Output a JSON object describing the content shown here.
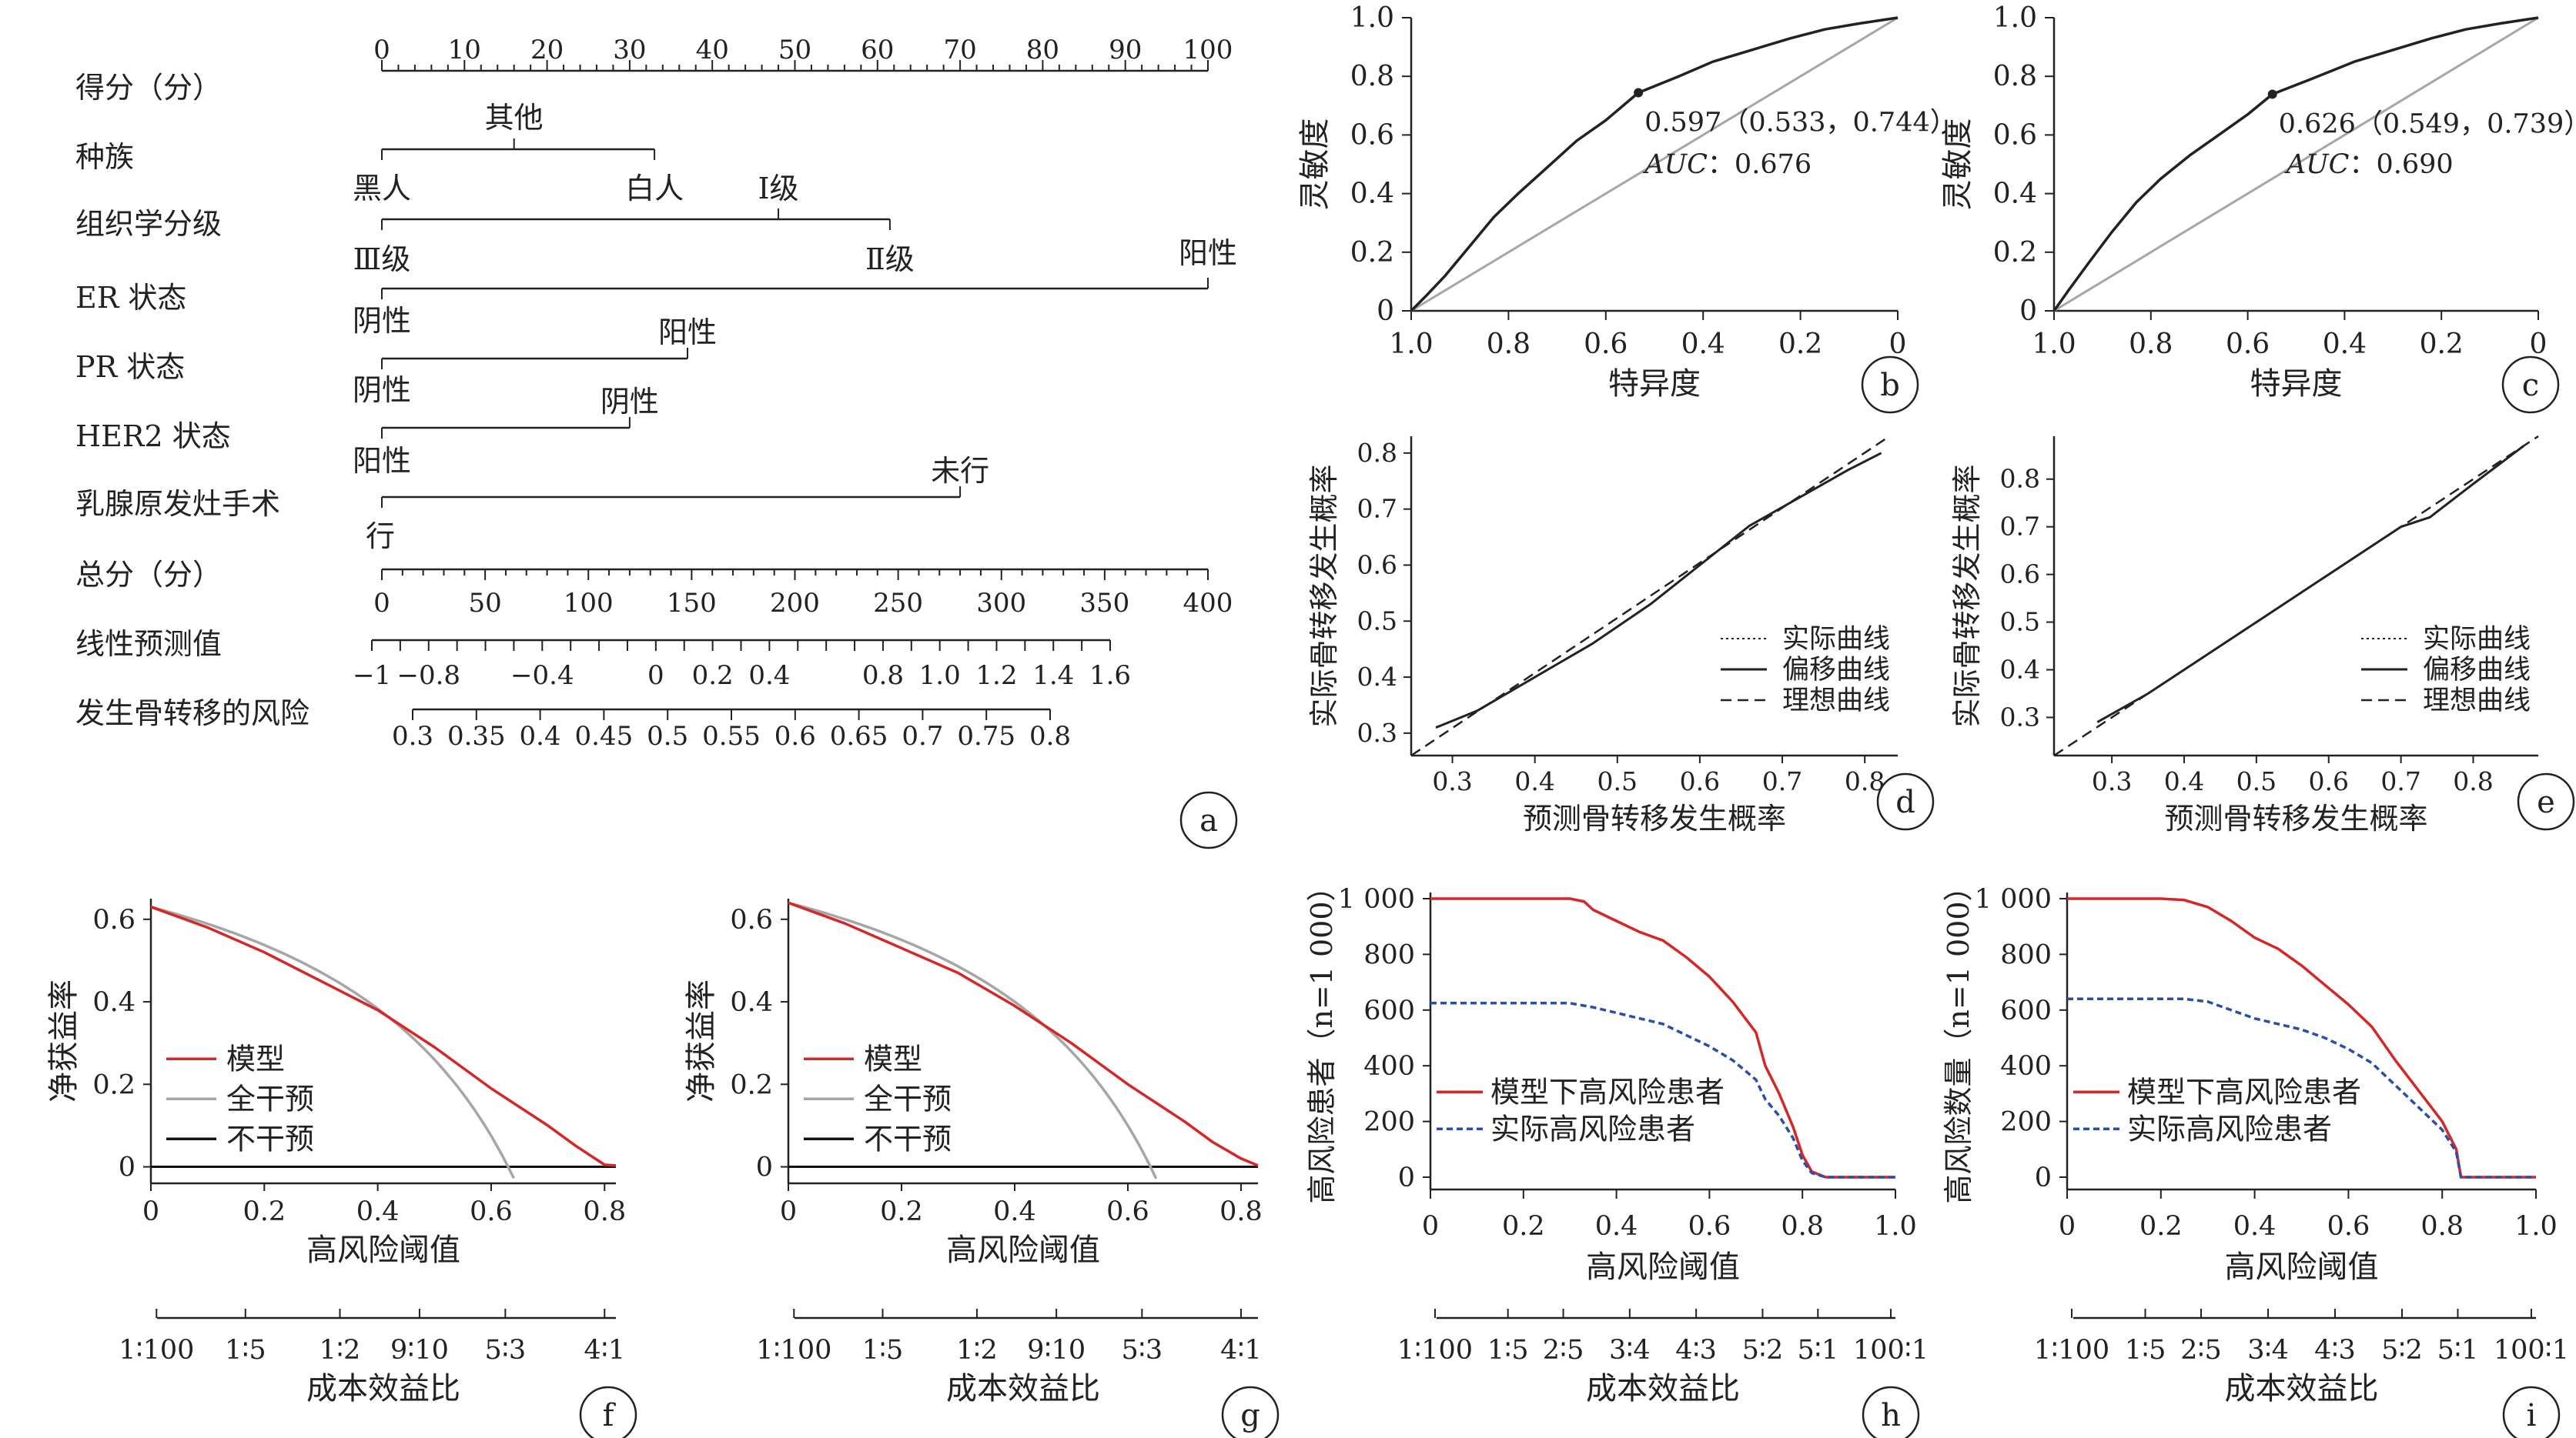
{
  "colors": {
    "model": "#d62728",
    "treat_all": "#a6a6a6",
    "treat_none": "#111111",
    "actual": "#2a4fa8",
    "ink": "#222222",
    "diag": "#a6a6a6"
  },
  "chart_data": [
    {
      "panel": "a",
      "type": "nomogram",
      "rows": [
        {
          "label": "得分（分）",
          "ticks": [
            "0",
            "10",
            "20",
            "30",
            "40",
            "50",
            "60",
            "70",
            "80",
            "90",
            "100"
          ]
        },
        {
          "label": "种族",
          "levels": [
            "其他",
            "黑人",
            "白人"
          ]
        },
        {
          "label": "组织学分级",
          "levels": [
            "Ⅰ级",
            "Ⅲ级",
            "Ⅱ级"
          ]
        },
        {
          "label": "ER 状态",
          "levels": [
            "阳性",
            "阴性"
          ]
        },
        {
          "label": "PR 状态",
          "levels": [
            "阳性",
            "阴性"
          ]
        },
        {
          "label": "HER2 状态",
          "levels": [
            "阴性",
            "阳性"
          ]
        },
        {
          "label": "乳腺原发灶手术",
          "levels": [
            "未行",
            "行"
          ]
        },
        {
          "label": "总分（分）",
          "ticks": [
            "0",
            "50",
            "100",
            "150",
            "200",
            "250",
            "300",
            "350",
            "400"
          ]
        },
        {
          "label": "线性预测值",
          "ticks": [
            "−1",
            "−0.8",
            "−0.4",
            "0",
            "0.2",
            "0.4",
            "0.8",
            "1.0",
            "1.2",
            "1.4",
            "1.6"
          ]
        },
        {
          "label": "发生骨转移的风险",
          "ticks": [
            "0.3",
            "0.35",
            "0.4",
            "0.45",
            "0.5",
            "0.55",
            "0.6",
            "0.65",
            "0.7",
            "0.75",
            "0.8"
          ]
        }
      ]
    },
    {
      "panel": "b",
      "type": "line",
      "xlabel": "特异度",
      "ylabel": "灵敏度",
      "xlim": [
        1,
        0
      ],
      "ylim": [
        0,
        1
      ],
      "xticks": [
        "1.0",
        "0.8",
        "0.6",
        "0.4",
        "0.2",
        "0"
      ],
      "yticks": [
        "0",
        "0.2",
        "0.4",
        "0.6",
        "0.8",
        "1.0"
      ],
      "cutoff_label": "0.597（0.533，0.744）",
      "cutoff": [
        0.533,
        0.744
      ],
      "auc_label": "AUC",
      "auc_value": "：0.676",
      "roc": [
        [
          1,
          0
        ],
        [
          0.97,
          0.05
        ],
        [
          0.93,
          0.12
        ],
        [
          0.88,
          0.22
        ],
        [
          0.83,
          0.32
        ],
        [
          0.78,
          0.4
        ],
        [
          0.72,
          0.49
        ],
        [
          0.66,
          0.58
        ],
        [
          0.6,
          0.65
        ],
        [
          0.533,
          0.744
        ],
        [
          0.45,
          0.8
        ],
        [
          0.38,
          0.85
        ],
        [
          0.3,
          0.89
        ],
        [
          0.22,
          0.93
        ],
        [
          0.15,
          0.96
        ],
        [
          0.08,
          0.98
        ],
        [
          0,
          1
        ]
      ]
    },
    {
      "panel": "c",
      "type": "line",
      "xlabel": "特异度",
      "ylabel": "灵敏度",
      "xlim": [
        1,
        0
      ],
      "ylim": [
        0,
        1
      ],
      "xticks": [
        "1.0",
        "0.8",
        "0.6",
        "0.4",
        "0.2",
        "0"
      ],
      "yticks": [
        "0",
        "0.2",
        "0.4",
        "0.6",
        "0.8",
        "1.0"
      ],
      "cutoff_label": "0.626（0.549，0.739）",
      "cutoff": [
        0.549,
        0.739
      ],
      "auc_label": "AUC",
      "auc_value": "：0.690",
      "roc": [
        [
          1,
          0
        ],
        [
          0.97,
          0.07
        ],
        [
          0.93,
          0.16
        ],
        [
          0.88,
          0.27
        ],
        [
          0.83,
          0.37
        ],
        [
          0.78,
          0.45
        ],
        [
          0.72,
          0.53
        ],
        [
          0.66,
          0.6
        ],
        [
          0.6,
          0.67
        ],
        [
          0.549,
          0.739
        ],
        [
          0.47,
          0.79
        ],
        [
          0.38,
          0.85
        ],
        [
          0.3,
          0.89
        ],
        [
          0.22,
          0.93
        ],
        [
          0.15,
          0.96
        ],
        [
          0.08,
          0.98
        ],
        [
          0,
          1
        ]
      ]
    },
    {
      "panel": "d",
      "type": "line",
      "xlabel": "预测骨转移发生概率",
      "ylabel": "实际骨转移发生概率",
      "xlim": [
        0.25,
        0.84
      ],
      "ylim": [
        0.26,
        0.83
      ],
      "xticks": [
        "0.3",
        "0.4",
        "0.5",
        "0.6",
        "0.7",
        "0.8"
      ],
      "yticks": [
        "0.3",
        "0.4",
        "0.5",
        "0.6",
        "0.7",
        "0.8"
      ],
      "legend": [
        "实际曲线",
        "偏移曲线",
        "理想曲线"
      ],
      "apparent": [
        [
          0.28,
          0.31
        ],
        [
          0.33,
          0.34
        ],
        [
          0.4,
          0.4
        ],
        [
          0.47,
          0.46
        ],
        [
          0.54,
          0.53
        ],
        [
          0.6,
          0.6
        ],
        [
          0.66,
          0.67
        ],
        [
          0.72,
          0.72
        ],
        [
          0.78,
          0.77
        ],
        [
          0.82,
          0.8
        ]
      ],
      "bias_corrected": [
        [
          0.28,
          0.31
        ],
        [
          0.33,
          0.34
        ],
        [
          0.4,
          0.4
        ],
        [
          0.47,
          0.46
        ],
        [
          0.54,
          0.53
        ],
        [
          0.6,
          0.6
        ],
        [
          0.66,
          0.67
        ],
        [
          0.72,
          0.72
        ],
        [
          0.78,
          0.77
        ],
        [
          0.82,
          0.8
        ]
      ]
    },
    {
      "panel": "e",
      "type": "line",
      "xlabel": "预测骨转移发生概率",
      "ylabel": "实际骨转移发生概率",
      "xlim": [
        0.22,
        0.89
      ],
      "ylim": [
        0.22,
        0.89
      ],
      "xticks": [
        "0.3",
        "0.4",
        "0.5",
        "0.6",
        "0.7",
        "0.8"
      ],
      "yticks": [
        "0.3",
        "0.4",
        "0.5",
        "0.6",
        "0.7",
        "0.8"
      ],
      "legend": [
        "实际曲线",
        "偏移曲线",
        "理想曲线"
      ],
      "apparent": [
        [
          0.28,
          0.29
        ],
        [
          0.35,
          0.35
        ],
        [
          0.42,
          0.42
        ],
        [
          0.5,
          0.5
        ],
        [
          0.58,
          0.58
        ],
        [
          0.64,
          0.64
        ],
        [
          0.7,
          0.7
        ],
        [
          0.74,
          0.72
        ],
        [
          0.8,
          0.79
        ],
        [
          0.87,
          0.87
        ]
      ],
      "bias_corrected": [
        [
          0.28,
          0.29
        ],
        [
          0.35,
          0.35
        ],
        [
          0.42,
          0.42
        ],
        [
          0.5,
          0.5
        ],
        [
          0.58,
          0.58
        ],
        [
          0.64,
          0.64
        ],
        [
          0.7,
          0.7
        ],
        [
          0.74,
          0.72
        ],
        [
          0.8,
          0.79
        ],
        [
          0.87,
          0.87
        ]
      ]
    },
    {
      "panel": "f",
      "type": "line",
      "xlabel": "高风险阈值",
      "ylabel": "净获益率",
      "xlim": [
        0,
        0.82
      ],
      "ylim": [
        -0.04,
        0.65
      ],
      "xticks": [
        "0",
        "0.2",
        "0.4",
        "0.6",
        "0.8"
      ],
      "yticks": [
        "0",
        "0.2",
        "0.4",
        "0.6"
      ],
      "legend": [
        "模型",
        "全干预",
        "不干预"
      ],
      "cost_label": "成本效益比",
      "cost_ticks": [
        "1∶100",
        "1∶5",
        "1∶2",
        "9∶10",
        "5∶3",
        "4∶1"
      ],
      "prevalence": 0.63,
      "model": [
        [
          0,
          0.63
        ],
        [
          0.1,
          0.58
        ],
        [
          0.2,
          0.52
        ],
        [
          0.3,
          0.45
        ],
        [
          0.4,
          0.38
        ],
        [
          0.5,
          0.29
        ],
        [
          0.6,
          0.19
        ],
        [
          0.7,
          0.1
        ],
        [
          0.75,
          0.05
        ],
        [
          0.8,
          0.005
        ],
        [
          0.82,
          0.003
        ]
      ]
    },
    {
      "panel": "g",
      "type": "line",
      "xlabel": "高风险阈值",
      "ylabel": "净获益率",
      "xlim": [
        0,
        0.83
      ],
      "ylim": [
        -0.04,
        0.65
      ],
      "xticks": [
        "0",
        "0.2",
        "0.4",
        "0.6",
        "0.8"
      ],
      "yticks": [
        "0",
        "0.2",
        "0.4",
        "0.6"
      ],
      "legend": [
        "模型",
        "全干预",
        "不干预"
      ],
      "cost_label": "成本效益比",
      "cost_ticks": [
        "1∶100",
        "1∶5",
        "1∶2",
        "9∶10",
        "5∶3",
        "4∶1"
      ],
      "prevalence": 0.64,
      "model": [
        [
          0,
          0.64
        ],
        [
          0.1,
          0.59
        ],
        [
          0.2,
          0.53
        ],
        [
          0.3,
          0.47
        ],
        [
          0.4,
          0.39
        ],
        [
          0.5,
          0.3
        ],
        [
          0.6,
          0.2
        ],
        [
          0.7,
          0.11
        ],
        [
          0.75,
          0.06
        ],
        [
          0.8,
          0.02
        ],
        [
          0.83,
          0.003
        ]
      ]
    },
    {
      "panel": "h",
      "type": "line",
      "xlabel": "高风险阈值",
      "ylabel": "高风险患者（n=1 000）",
      "xlim": [
        0,
        1
      ],
      "ylim": [
        0,
        1000
      ],
      "xticks": [
        "0",
        "0.2",
        "0.4",
        "0.6",
        "0.8",
        "1.0"
      ],
      "yticks": [
        "0",
        "200",
        "400",
        "600",
        "800",
        "1 000"
      ],
      "legend": [
        "模型下高风险患者",
        "实际高风险患者"
      ],
      "cost_label": "成本效益比",
      "cost_ticks": [
        "1∶100",
        "1∶5",
        "2∶5",
        "3∶4",
        "4∶3",
        "5∶2",
        "5∶1",
        "100∶1"
      ],
      "model": [
        [
          0,
          1000
        ],
        [
          0.3,
          1000
        ],
        [
          0.33,
          990
        ],
        [
          0.35,
          960
        ],
        [
          0.4,
          920
        ],
        [
          0.45,
          880
        ],
        [
          0.5,
          850
        ],
        [
          0.55,
          790
        ],
        [
          0.6,
          720
        ],
        [
          0.65,
          630
        ],
        [
          0.7,
          520
        ],
        [
          0.72,
          400
        ],
        [
          0.75,
          300
        ],
        [
          0.78,
          180
        ],
        [
          0.8,
          80
        ],
        [
          0.82,
          20
        ],
        [
          0.85,
          0
        ],
        [
          1,
          0
        ]
      ],
      "actual": [
        [
          0,
          625
        ],
        [
          0.3,
          625
        ],
        [
          0.35,
          610
        ],
        [
          0.4,
          590
        ],
        [
          0.45,
          570
        ],
        [
          0.5,
          550
        ],
        [
          0.55,
          510
        ],
        [
          0.6,
          470
        ],
        [
          0.65,
          420
        ],
        [
          0.7,
          350
        ],
        [
          0.72,
          280
        ],
        [
          0.75,
          220
        ],
        [
          0.78,
          140
        ],
        [
          0.8,
          60
        ],
        [
          0.82,
          15
        ],
        [
          0.85,
          0
        ],
        [
          1,
          0
        ]
      ]
    },
    {
      "panel": "i",
      "type": "line",
      "xlabel": "高风险阈值",
      "ylabel": "高风险数量（n=1 000）",
      "xlim": [
        0,
        1
      ],
      "ylim": [
        0,
        1000
      ],
      "xticks": [
        "0",
        "0.2",
        "0.4",
        "0.6",
        "0.8",
        "1.0"
      ],
      "yticks": [
        "0",
        "200",
        "400",
        "600",
        "800",
        "1 000"
      ],
      "legend": [
        "模型下高风险患者",
        "实际高风险患者"
      ],
      "cost_label": "成本效益比",
      "cost_ticks": [
        "1∶100",
        "1∶5",
        "2∶5",
        "3∶4",
        "4∶3",
        "5∶2",
        "5∶1",
        "100∶1"
      ],
      "model": [
        [
          0,
          1000
        ],
        [
          0.2,
          1000
        ],
        [
          0.25,
          995
        ],
        [
          0.3,
          970
        ],
        [
          0.35,
          920
        ],
        [
          0.4,
          860
        ],
        [
          0.45,
          820
        ],
        [
          0.5,
          760
        ],
        [
          0.55,
          690
        ],
        [
          0.6,
          620
        ],
        [
          0.65,
          540
        ],
        [
          0.7,
          420
        ],
        [
          0.75,
          310
        ],
        [
          0.8,
          200
        ],
        [
          0.83,
          100
        ],
        [
          0.84,
          0
        ],
        [
          1,
          0
        ]
      ],
      "actual": [
        [
          0,
          640
        ],
        [
          0.2,
          640
        ],
        [
          0.25,
          640
        ],
        [
          0.3,
          630
        ],
        [
          0.35,
          600
        ],
        [
          0.4,
          570
        ],
        [
          0.45,
          550
        ],
        [
          0.5,
          530
        ],
        [
          0.55,
          500
        ],
        [
          0.6,
          460
        ],
        [
          0.65,
          410
        ],
        [
          0.7,
          330
        ],
        [
          0.75,
          250
        ],
        [
          0.8,
          170
        ],
        [
          0.83,
          90
        ],
        [
          0.84,
          0
        ],
        [
          1,
          0
        ]
      ]
    }
  ]
}
